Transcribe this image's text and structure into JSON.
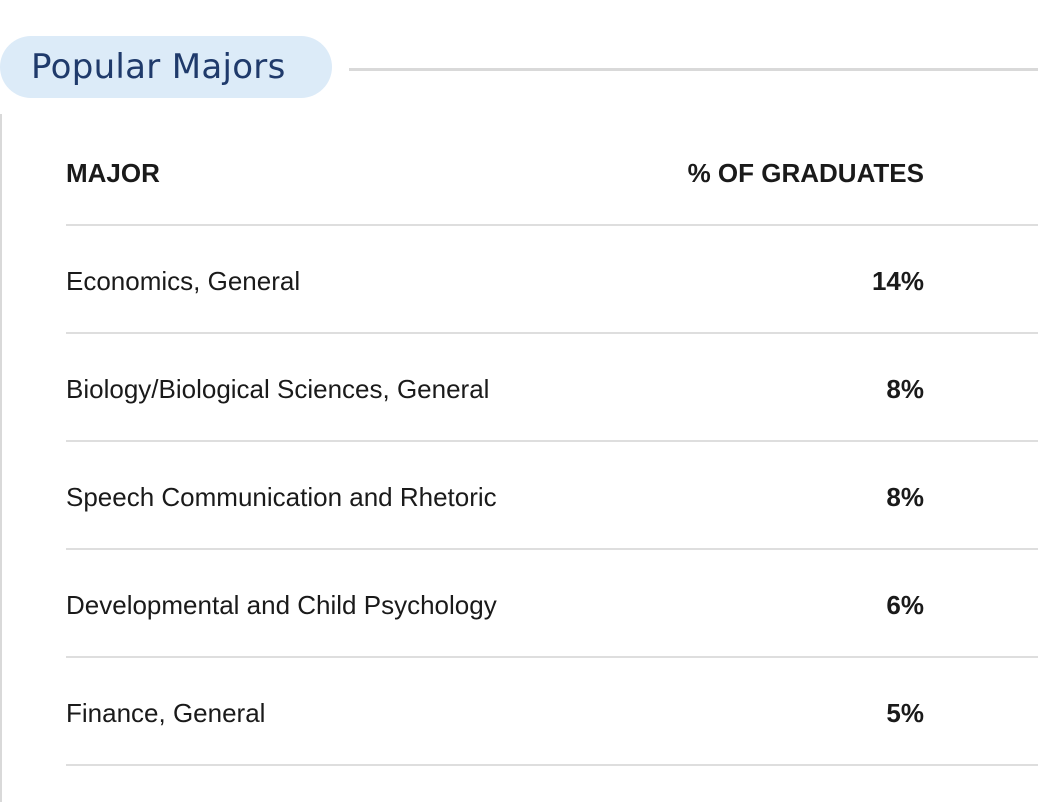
{
  "section": {
    "title": "Popular Majors"
  },
  "table": {
    "headers": {
      "major": "MAJOR",
      "percent": "% OF GRADUATES"
    },
    "rows": [
      {
        "major": "Economics, General",
        "percent": "14%"
      },
      {
        "major": "Biology/Biological Sciences, General",
        "percent": "8%"
      },
      {
        "major": "Speech Communication and Rhetoric",
        "percent": "8%"
      },
      {
        "major": "Developmental and Child Psychology",
        "percent": "6%"
      },
      {
        "major": "Finance, General",
        "percent": "5%"
      }
    ]
  },
  "colors": {
    "pill_background": "#dcebf8",
    "title_text": "#1f3a6b",
    "rule": "#d9d9d9",
    "row_divider": "#dedede"
  }
}
